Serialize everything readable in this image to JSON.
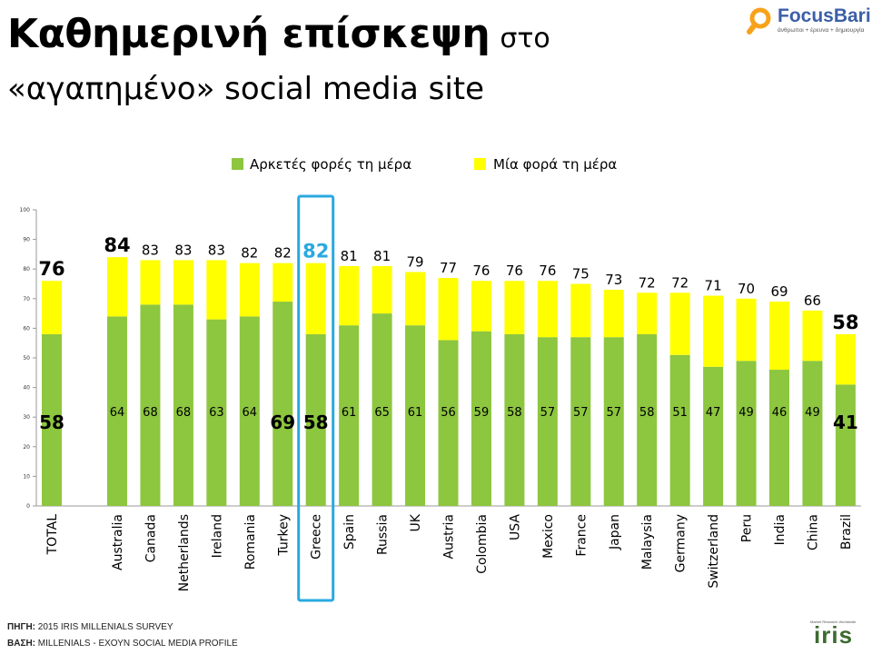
{
  "title": {
    "main": "Καθημερινή επίσκεψη",
    "small": "στο",
    "line2": "«αγαπημένο» social media site"
  },
  "logo": {
    "name": "FocusBari",
    "tagline": "άνθρωποι + έρευνα + δημιουργία"
  },
  "footer": {
    "source_label": "ΠΗΓΗ:",
    "source_value": "2015 IRIS MILLENIALS SURVEY",
    "base_label": "ΒΑΣΗ:",
    "base_value": "MILLENIALS - ΕΧΟΥΝ SOCIAL MEDIA PROFILE"
  },
  "iris_logo": {
    "name": "iris",
    "tagline": "Market Research Worldwide"
  },
  "chart_data": {
    "type": "bar",
    "stacked": true,
    "categories": [
      "TOTAL",
      "Australia",
      "Canada",
      "Netherlands",
      "Ireland",
      "Romania",
      "Turkey",
      "Greece",
      "Spain",
      "Russia",
      "UK",
      "Austria",
      "Colombia",
      "USA",
      "Mexico",
      "France",
      "Japan",
      "Malaysia",
      "Germany",
      "Switzerland",
      "Peru",
      "India",
      "China",
      "Brazil"
    ],
    "series": [
      {
        "name": "Αρκετές φορές τη μέρα",
        "color": "#8dc63f",
        "values": [
          58,
          64,
          68,
          68,
          63,
          64,
          69,
          58,
          61,
          65,
          61,
          56,
          59,
          58,
          57,
          57,
          57,
          58,
          51,
          47,
          49,
          46,
          49,
          41
        ]
      },
      {
        "name": "Μία φορά τη μέρα",
        "color": "#ffff00",
        "values": [
          18,
          20,
          15,
          15,
          20,
          18,
          13,
          24,
          20,
          16,
          18,
          21,
          17,
          18,
          19,
          18,
          16,
          14,
          21,
          24,
          21,
          23,
          17,
          17
        ]
      }
    ],
    "totals": [
      76,
      84,
      83,
      83,
      83,
      82,
      82,
      82,
      81,
      81,
      79,
      77,
      76,
      76,
      76,
      75,
      73,
      72,
      72,
      71,
      70,
      69,
      66,
      58
    ],
    "bold_total_indices": [
      0,
      1,
      23
    ],
    "bold_inner_indices": [
      0,
      6,
      7,
      23
    ],
    "highlight_index": 7,
    "highlight_color": "#29a9e0",
    "yticks": [
      "0",
      "10",
      "20",
      "30",
      "40",
      "50",
      "60",
      "70",
      "80",
      "90",
      "100"
    ],
    "ylim": [
      0,
      100
    ],
    "legend_position": "top"
  }
}
